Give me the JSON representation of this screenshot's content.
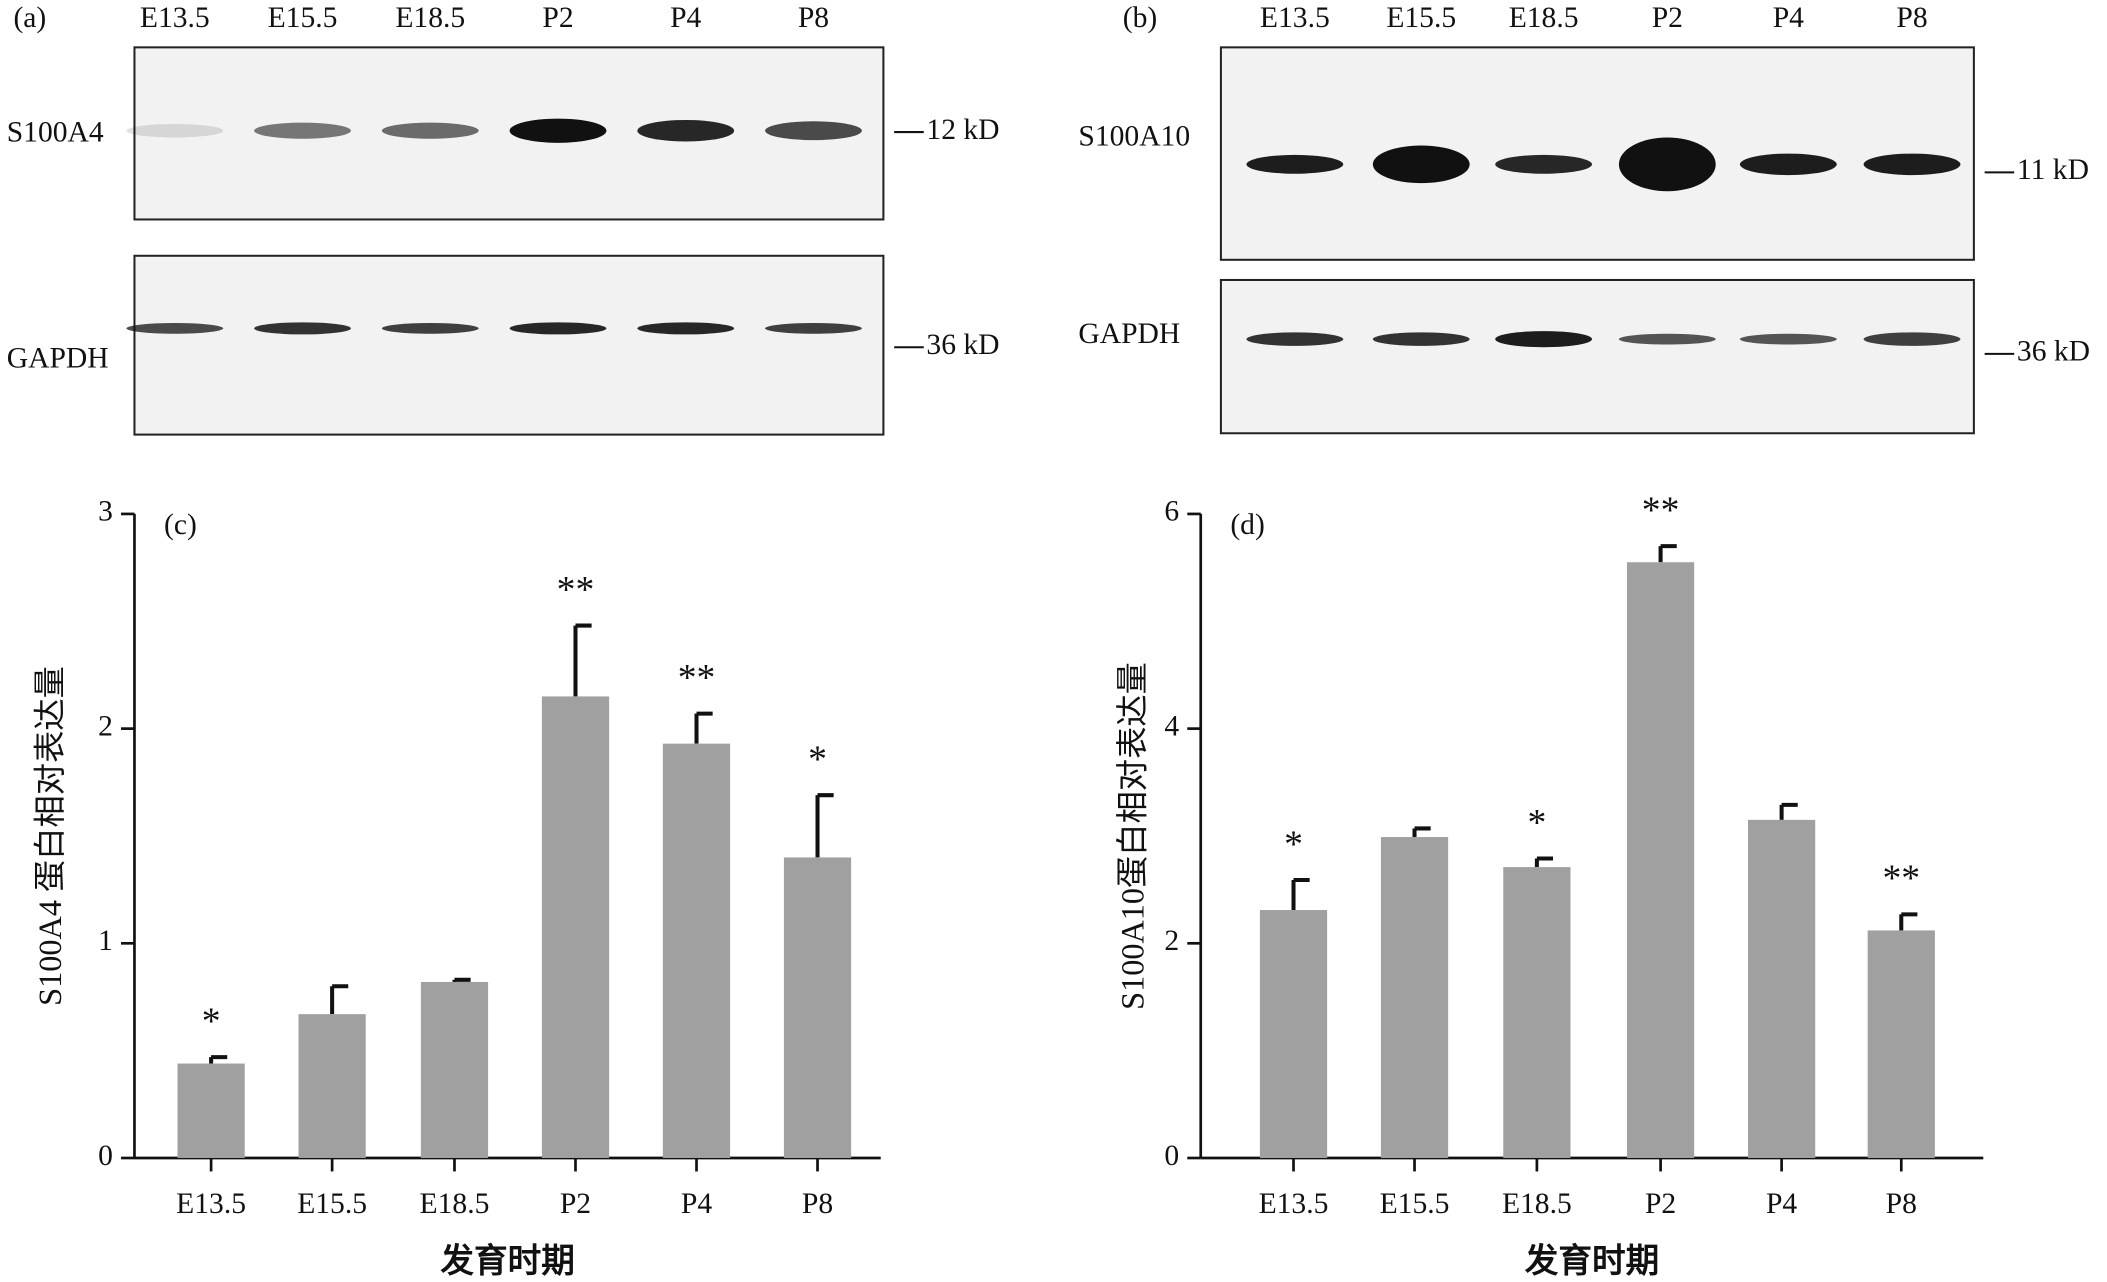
{
  "blots": [
    {
      "panel": "(a)",
      "lanes": [
        "E13.5",
        "E15.5",
        "E18.5",
        "P2",
        "P4",
        "P8"
      ],
      "rows": [
        {
          "protein": "S100A4",
          "marker": "12 kD"
        },
        {
          "protein": "GAPDH",
          "marker": "36 kD"
        }
      ]
    },
    {
      "panel": "(b)",
      "lanes": [
        "E13.5",
        "E15.5",
        "E18.5",
        "P2",
        "P4",
        "P8"
      ],
      "rows": [
        {
          "protein": "S100A10",
          "marker": "11 kD"
        },
        {
          "protein": "GAPDH",
          "marker": "36 kD"
        }
      ]
    }
  ],
  "chart_data": [
    {
      "type": "bar",
      "panel": "(c)",
      "ylabel": "S100A4 蛋白相对表达量",
      "xlabel": "发育时期",
      "categories": [
        "E13.5",
        "E15.5",
        "E18.5",
        "P2",
        "P4",
        "P8"
      ],
      "values": [
        0.44,
        0.67,
        0.82,
        2.15,
        1.93,
        1.4
      ],
      "errors": [
        0.03,
        0.13,
        0.01,
        0.33,
        0.14,
        0.29
      ],
      "significance": [
        "*",
        null,
        null,
        "**",
        "**",
        "*"
      ],
      "color": "#a0a0a0",
      "ylim": [
        0,
        3
      ],
      "yticks": [
        0,
        1,
        2,
        3
      ]
    },
    {
      "type": "bar",
      "panel": "(d)",
      "ylabel": "S100A10蛋白相对表达量",
      "xlabel": "发育时期",
      "categories": [
        "E13.5",
        "E15.5",
        "E18.5",
        "P2",
        "P4",
        "P8"
      ],
      "values": [
        2.31,
        2.99,
        2.71,
        5.55,
        3.15,
        2.12
      ],
      "errors": [
        0.28,
        0.08,
        0.08,
        0.15,
        0.14,
        0.15
      ],
      "significance": [
        "*",
        null,
        "*",
        "**",
        null,
        "**"
      ],
      "color": "#a0a0a0",
      "ylim": [
        0,
        6
      ],
      "yticks": [
        0,
        2,
        4,
        6
      ]
    }
  ]
}
